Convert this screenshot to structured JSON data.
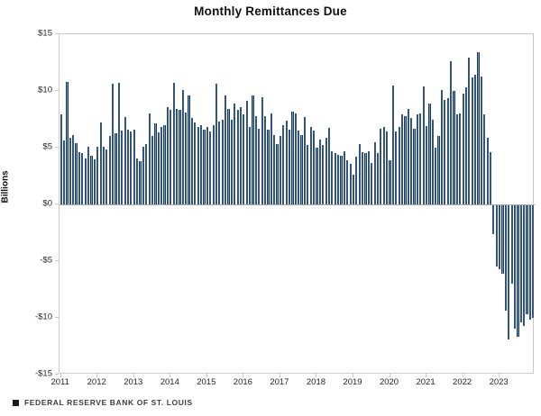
{
  "title": "Monthly Remittances Due",
  "y_axis": {
    "label": "Billions",
    "tick_labels": [
      "$15",
      "$10",
      "$5",
      "$0",
      "-$5",
      "-$10",
      "-$15"
    ],
    "tick_values": [
      15,
      10,
      5,
      0,
      -5,
      -10,
      -15
    ],
    "min": -15,
    "max": 15
  },
  "x_axis": {
    "tick_labels": [
      "2011",
      "2012",
      "2013",
      "2014",
      "2015",
      "2016",
      "2017",
      "2018",
      "2019",
      "2020",
      "2021",
      "2022",
      "2023"
    ]
  },
  "footer": {
    "marker": "black-square-icon",
    "source_label": "FEDERAL RESERVE BANK OF ST. LOUIS"
  },
  "colors": {
    "bar_edge": "#17375E",
    "bar_center": "#7DA7D9",
    "axis_frame": "#c9c9c9",
    "zero_line": "#a9a9a9",
    "text": "#262626"
  },
  "chart_data": {
    "type": "bar",
    "title": "Monthly Remittances Due",
    "xlabel": "",
    "ylabel": "Billions",
    "units": "USD billions",
    "ylim": [
      -15,
      15
    ],
    "frequency": "monthly",
    "x_start": "2011-01",
    "x_end": "2023-12",
    "grid": false,
    "legend": false,
    "categories": [
      "2011",
      "2012",
      "2013",
      "2014",
      "2015",
      "2016",
      "2017",
      "2018",
      "2019",
      "2020",
      "2021",
      "2022",
      "2023"
    ],
    "values_by_year": {
      "2011": [
        7.9,
        5.6,
        10.8,
        5.9,
        6.1,
        5.4,
        4.6,
        4.5,
        4.05,
        5.05,
        4.3,
        3.95
      ],
      "2012": [
        5.1,
        7.25,
        5.1,
        4.85,
        6.0,
        10.6,
        6.25,
        10.7,
        6.5,
        7.7,
        6.6,
        6.4
      ],
      "2013": [
        6.6,
        4.05,
        3.8,
        5.1,
        5.3,
        8.0,
        6.0,
        7.15,
        6.35,
        6.8,
        7.0,
        8.6
      ],
      "2014": [
        8.3,
        10.7,
        8.45,
        8.35,
        10.1,
        8.1,
        9.6,
        7.6,
        7.2,
        6.8,
        7.0,
        6.6
      ],
      "2015": [
        6.85,
        6.4,
        7.0,
        10.6,
        7.3,
        7.5,
        9.6,
        8.45,
        7.45,
        8.85,
        8.3,
        8.6
      ],
      "2016": [
        7.9,
        9.15,
        6.8,
        9.6,
        7.8,
        6.65,
        9.45,
        7.75,
        6.6,
        8.0,
        6.15,
        5.3
      ],
      "2017": [
        6.05,
        6.95,
        7.35,
        6.6,
        8.15,
        8.0,
        6.5,
        6.1,
        7.7,
        5.25,
        6.8,
        6.5
      ],
      "2018": [
        5.0,
        5.7,
        5.2,
        5.9,
        6.75,
        4.7,
        4.55,
        4.4,
        4.25,
        4.7,
        3.9,
        3.6
      ],
      "2019": [
        2.65,
        4.2,
        5.3,
        4.6,
        4.5,
        4.65,
        3.65,
        5.45,
        4.55,
        6.65,
        6.8,
        6.4
      ],
      "2020": [
        3.85,
        10.5,
        6.4,
        6.8,
        7.9,
        7.8,
        8.45,
        7.6,
        6.7,
        7.9,
        8.0,
        10.4
      ],
      "2021": [
        6.9,
        8.9,
        7.5,
        5.0,
        6.05,
        10.1,
        9.2,
        9.4,
        12.6,
        10.0,
        7.9,
        8.0
      ],
      "2022": [
        9.8,
        10.3,
        12.9,
        11.2,
        11.4,
        13.4,
        11.3,
        7.9,
        5.9,
        4.6,
        -2.5,
        -5.4
      ],
      "2023": [
        -5.6,
        -6.0,
        -9.3,
        -11.8,
        -6.9,
        -10.9,
        -11.6,
        -10.3,
        -10.6,
        -9.6,
        -10.1,
        -9.9
      ]
    }
  }
}
